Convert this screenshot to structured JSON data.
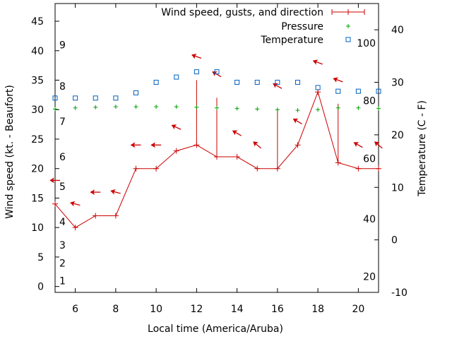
{
  "chart_data": {
    "type": "line",
    "xlabel": "Local time (America/Aruba)",
    "ylabel": "Wind speed (kt. - Beaufort)",
    "y2label": "Temperature (C - F)",
    "xlim": [
      5,
      21
    ],
    "ylim": [
      -1,
      48
    ],
    "y2lim": [
      -10,
      45
    ],
    "x_ticks": [
      6,
      8,
      10,
      12,
      14,
      16,
      18,
      20
    ],
    "y_ticks": [
      0,
      5,
      10,
      15,
      20,
      25,
      30,
      35,
      40,
      45
    ],
    "y2_ticks": [
      -10,
      0,
      10,
      20,
      30,
      40
    ],
    "beaufort_labels": [
      {
        "label": "1",
        "y": 1
      },
      {
        "label": "2",
        "y": 4
      },
      {
        "label": "3",
        "y": 7
      },
      {
        "label": "4",
        "y": 11
      },
      {
        "label": "5",
        "y": 17
      },
      {
        "label": "6",
        "y": 22
      },
      {
        "label": "7",
        "y": 28
      },
      {
        "label": "8",
        "y": 34
      },
      {
        "label": "9",
        "y": 41
      }
    ],
    "fahrenheit_labels": [
      {
        "label": "20",
        "y2": -7
      },
      {
        "label": "40",
        "y2": 4
      },
      {
        "label": "60",
        "y2": 15.5
      },
      {
        "label": "80",
        "y2": 26.5
      },
      {
        "label": "100",
        "y2": 37.5
      }
    ],
    "legend_position": "top-right",
    "series": [
      {
        "name": "Wind speed, gusts, and direction",
        "color": "#cc0000",
        "x": [
          5,
          6,
          7,
          8,
          9,
          10,
          11,
          12,
          13,
          14,
          15,
          16,
          17,
          18,
          19,
          20,
          21
        ],
        "speed": [
          14,
          10,
          12,
          12,
          20,
          20,
          23,
          24,
          22,
          22,
          20,
          20,
          24,
          33,
          21,
          20,
          20
        ],
        "gust": [
          14,
          10,
          12,
          12,
          20,
          20,
          23,
          35,
          32,
          22,
          20,
          30,
          24,
          33,
          31,
          20,
          20
        ],
        "arrow_y": [
          18,
          14,
          16,
          16,
          24,
          24,
          27,
          39,
          36,
          26,
          24,
          34,
          28,
          38,
          35,
          24,
          24
        ],
        "arrow_angle_deg": [
          0,
          15,
          0,
          15,
          0,
          0,
          25,
          20,
          30,
          30,
          40,
          30,
          30,
          20,
          20,
          30,
          40
        ]
      },
      {
        "name": "Pressure",
        "color": "#00a000",
        "x": [
          5,
          6,
          7,
          8,
          9,
          10,
          11,
          12,
          13,
          14,
          15,
          16,
          17,
          18,
          19,
          20,
          21
        ],
        "y": [
          30.1,
          30.3,
          30.4,
          30.5,
          30.5,
          30.5,
          30.5,
          30.4,
          30.3,
          30.2,
          30.1,
          30,
          29.9,
          30,
          30.3,
          30.3,
          30.2
        ]
      },
      {
        "name": "Temperature",
        "color": "#0060c0",
        "x": [
          5,
          6,
          7,
          8,
          9,
          10,
          11,
          12,
          13,
          14,
          15,
          16,
          17,
          18,
          19,
          20,
          21
        ],
        "y2": [
          27,
          27,
          27,
          27,
          28,
          30,
          31,
          32,
          32,
          30,
          30,
          30,
          30,
          29,
          28.3,
          28.3,
          28.3
        ]
      }
    ]
  }
}
